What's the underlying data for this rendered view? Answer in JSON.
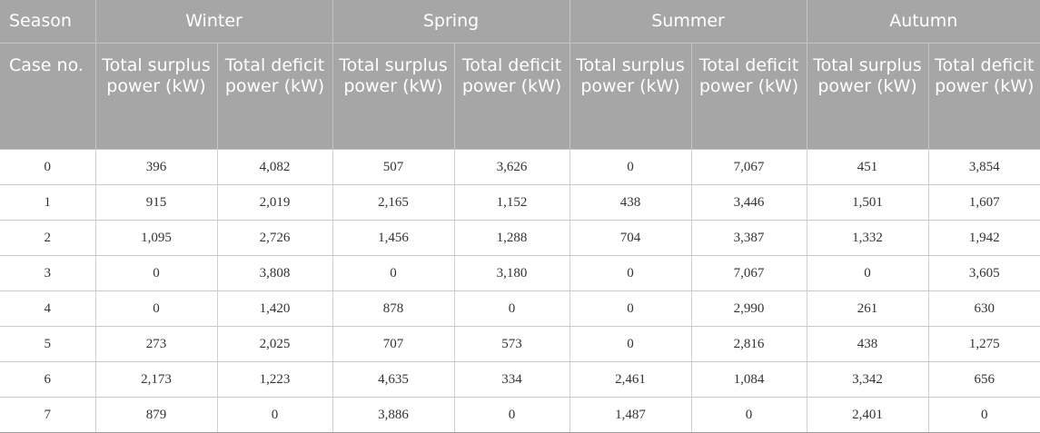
{
  "header": {
    "season_label": "Season",
    "case_label": "Case no.",
    "seasons": [
      "Winter",
      "Spring",
      "Summer",
      "Autumn"
    ],
    "surplus_label": "Total surplus power (kW)",
    "deficit_label": "Total deficit power (kW)"
  },
  "rows": [
    [
      "0",
      "396",
      "4,082",
      "507",
      "3,626",
      "0",
      "7,067",
      "451",
      "3,854"
    ],
    [
      "1",
      "915",
      "2,019",
      "2,165",
      "1,152",
      "438",
      "3,446",
      "1,501",
      "1,607"
    ],
    [
      "2",
      "1,095",
      "2,726",
      "1,456",
      "1,288",
      "704",
      "3,387",
      "1,332",
      "1,942"
    ],
    [
      "3",
      "0",
      "3,808",
      "0",
      "3,180",
      "0",
      "7,067",
      "0",
      "3,605"
    ],
    [
      "4",
      "0",
      "1,420",
      "878",
      "0",
      "0",
      "2,990",
      "261",
      "630"
    ],
    [
      "5",
      "273",
      "2,025",
      "707",
      "573",
      "0",
      "2,816",
      "438",
      "1,275"
    ],
    [
      "6",
      "2,173",
      "1,223",
      "4,635",
      "334",
      "2,461",
      "1,084",
      "3,342",
      "656"
    ],
    [
      "7",
      "879",
      "0",
      "3,886",
      "0",
      "1,487",
      "0",
      "2,401",
      "0"
    ]
  ]
}
